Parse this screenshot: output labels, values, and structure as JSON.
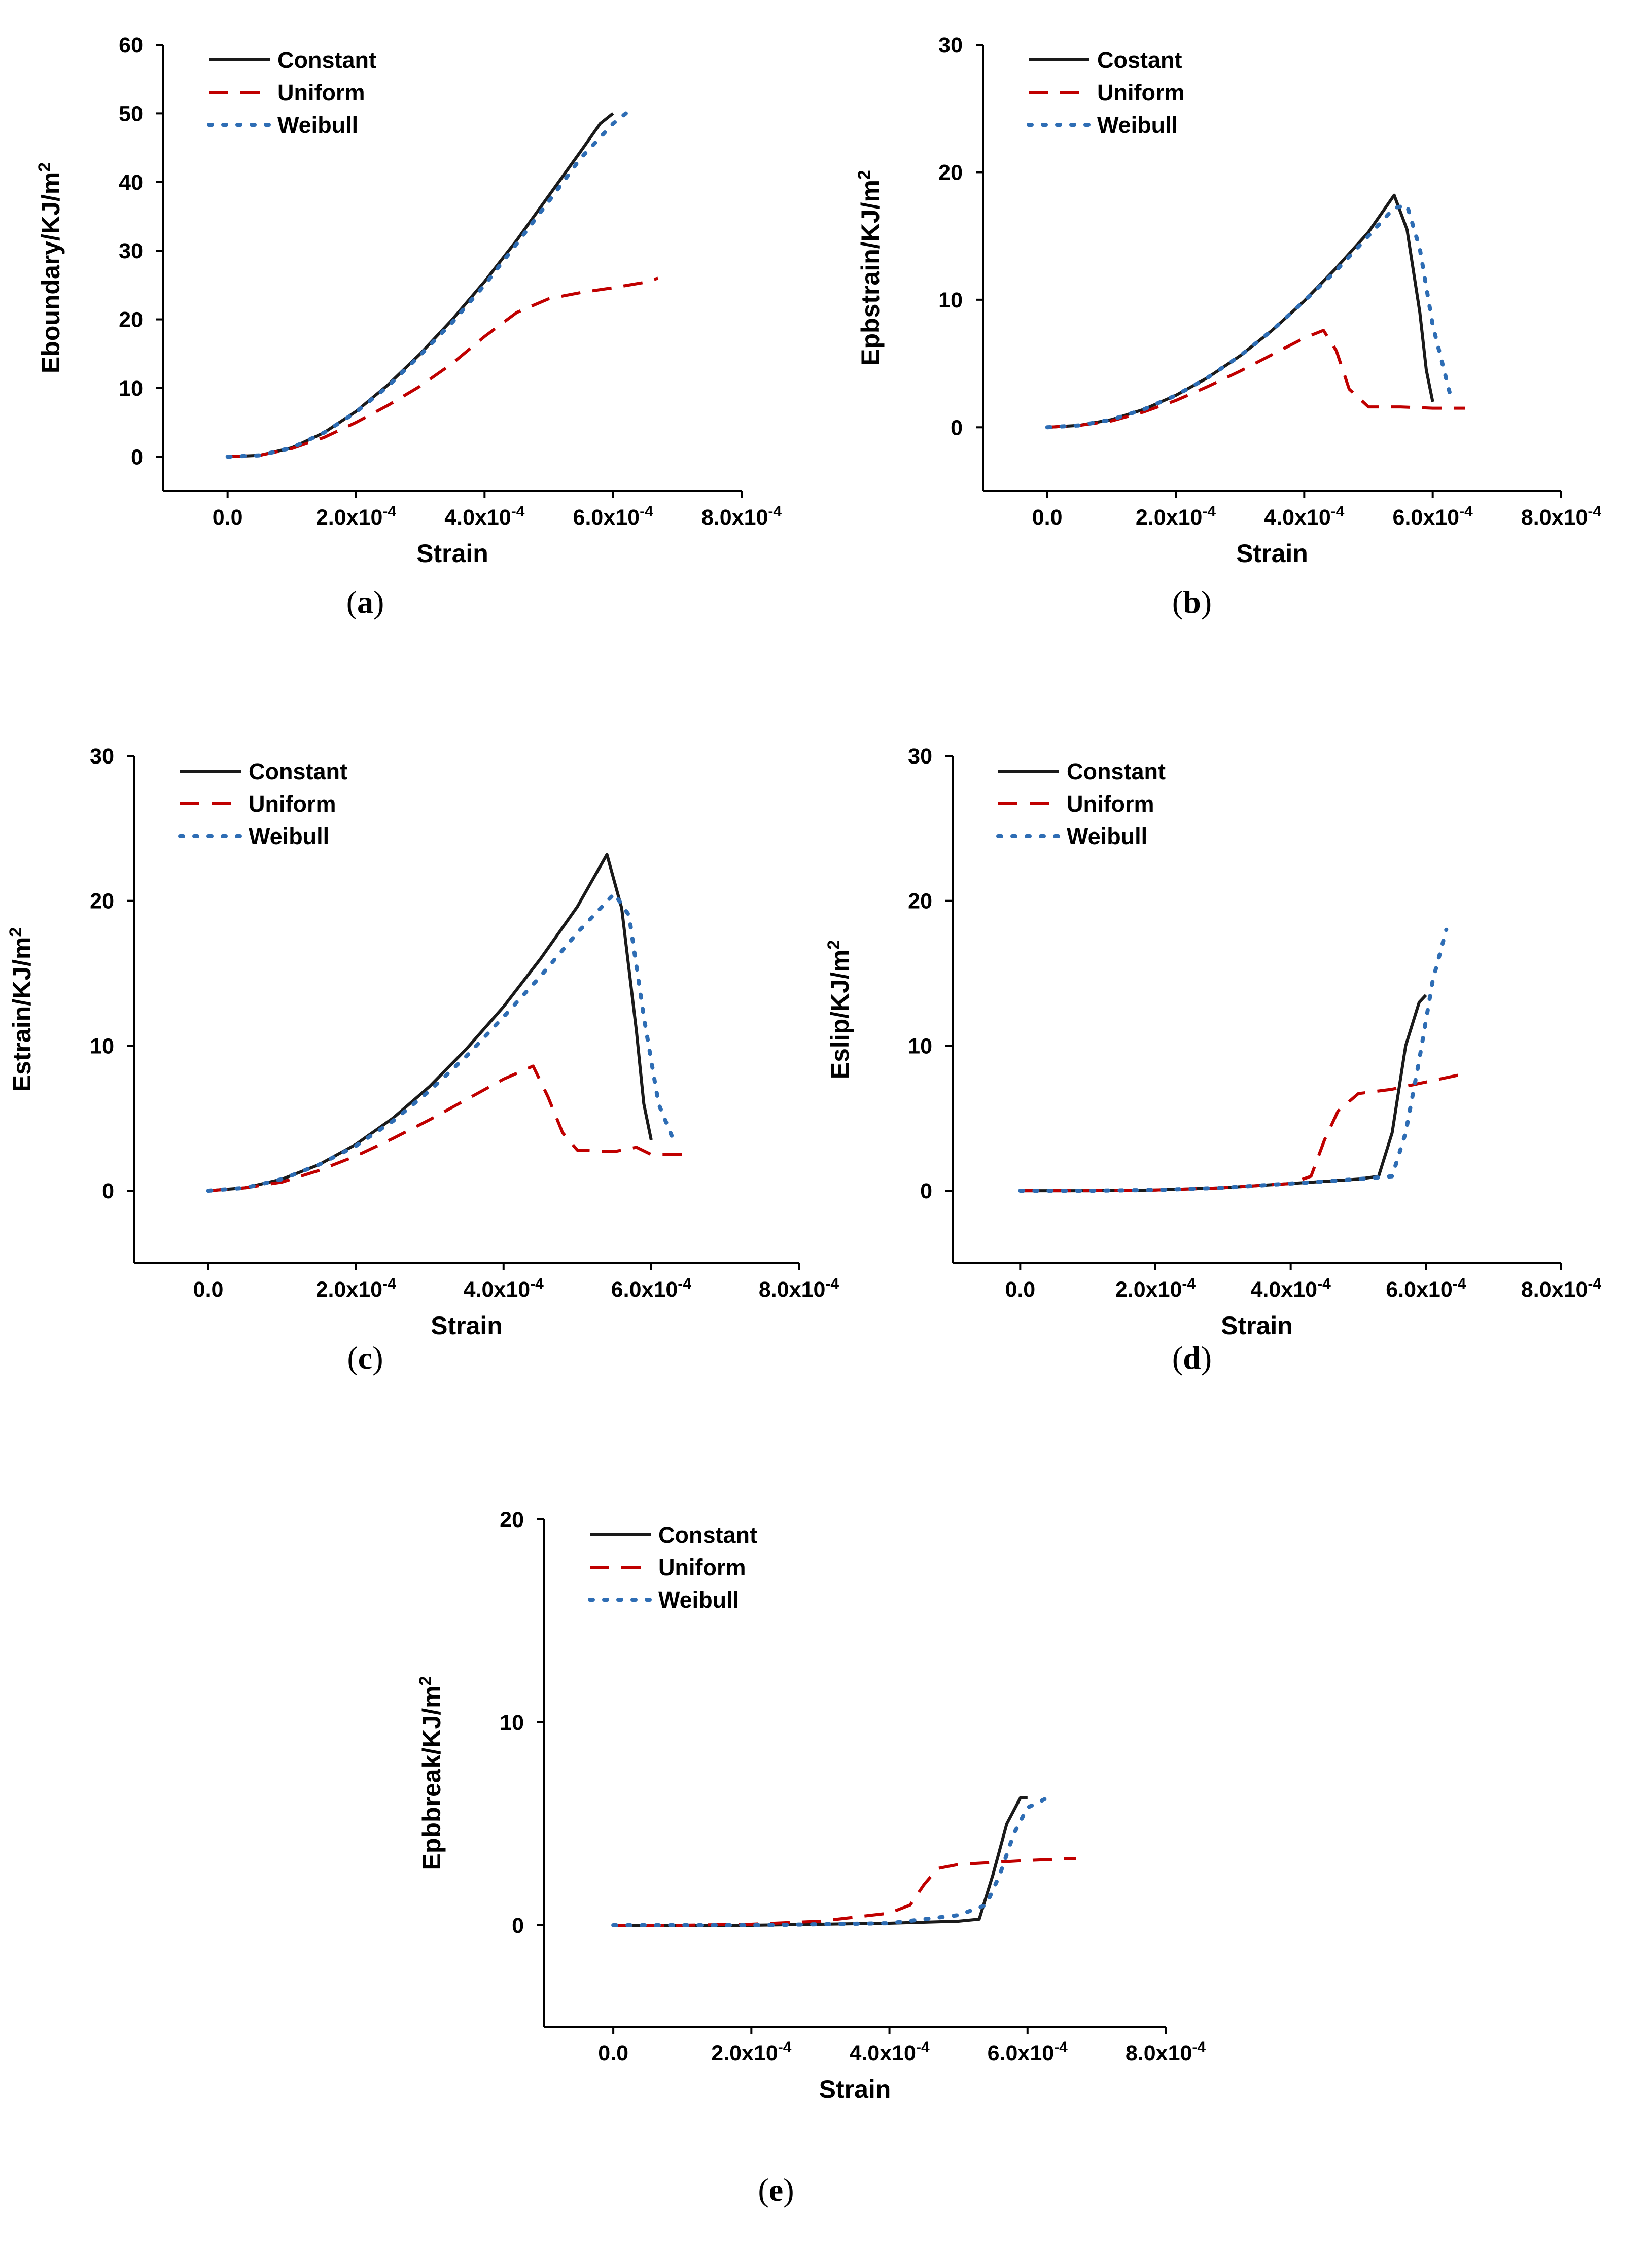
{
  "colors": {
    "constant": "#1a1a1a",
    "uniform": "#c00000",
    "weibull": "#2e6db4"
  },
  "legend": [
    "Constant",
    "Uniform",
    "Weibull"
  ],
  "chart_data": [
    {
      "type": "line",
      "panel": "a",
      "caption": "a",
      "xlabel": "Strain",
      "ylabel": "Eboundary/KJ/m²",
      "xlim": [
        -0.0001,
        0.0008
      ],
      "ylim": [
        -5,
        60
      ],
      "xticks": [
        0.0,
        0.0002,
        0.0004,
        0.0006,
        0.0008
      ],
      "xtick_labels": [
        "0.0",
        "2.0x10⁻⁴",
        "4.0x10⁻⁴",
        "6.0x10⁻⁴",
        "8.0x10⁻⁴"
      ],
      "yticks": [
        0,
        10,
        20,
        30,
        40,
        50,
        60
      ],
      "ytick_labels": [
        "0",
        "10",
        "20",
        "30",
        "40",
        "50",
        "60"
      ],
      "legend_labels": [
        "Constant",
        "Uniform",
        "Weibull"
      ],
      "series": [
        {
          "name": "Constant",
          "style": "solid",
          "x": [
            0,
            5e-05,
            0.0001,
            0.00015,
            0.0002,
            0.00025,
            0.0003,
            0.00035,
            0.0004,
            0.00045,
            0.0005,
            0.00055,
            0.00058,
            0.0006
          ],
          "y": [
            0,
            0.2,
            1.3,
            3.5,
            6.6,
            10.5,
            15,
            20,
            25.5,
            31.5,
            38,
            44.5,
            48.5,
            50
          ]
        },
        {
          "name": "Uniform",
          "style": "dashed",
          "x": [
            0,
            5e-05,
            0.0001,
            0.00015,
            0.0002,
            0.00025,
            0.0003,
            0.00035,
            0.0004,
            0.00045,
            0.0005,
            0.00055,
            0.0006,
            0.00065,
            0.00067
          ],
          "y": [
            0,
            0.2,
            1.2,
            2.8,
            5,
            7.5,
            10.3,
            13.6,
            17.5,
            21,
            23,
            23.9,
            24.6,
            25.4,
            26
          ]
        },
        {
          "name": "Weibull",
          "style": "dotted",
          "x": [
            0,
            5e-05,
            0.0001,
            0.00015,
            0.0002,
            0.00025,
            0.0003,
            0.00035,
            0.0004,
            0.00045,
            0.0005,
            0.00055,
            0.0006,
            0.00062
          ],
          "y": [
            0,
            0.2,
            1.3,
            3.5,
            6.5,
            10.3,
            14.8,
            19.6,
            25,
            31,
            37.2,
            43.5,
            48.5,
            50
          ]
        }
      ]
    },
    {
      "type": "line",
      "panel": "b",
      "caption": "b",
      "xlabel": "Strain",
      "ylabel": "Epbstrain/KJ/m²",
      "xlim": [
        -0.0001,
        0.0008
      ],
      "ylim": [
        -5,
        30
      ],
      "xticks": [
        0.0,
        0.0002,
        0.0004,
        0.0006,
        0.0008
      ],
      "xtick_labels": [
        "0.0",
        "2.0x10⁻⁴",
        "4.0x10⁻⁴",
        "6.0x10⁻⁴",
        "8.0x10⁻⁴"
      ],
      "yticks": [
        0,
        10,
        20,
        30
      ],
      "ytick_labels": [
        "0",
        "10",
        "20",
        "30"
      ],
      "legend_labels": [
        "Costant",
        "Uniform",
        "Weibull"
      ],
      "series": [
        {
          "name": "Constant",
          "style": "solid",
          "x": [
            0,
            5e-05,
            0.0001,
            0.00015,
            0.0002,
            0.00025,
            0.0003,
            0.00035,
            0.0004,
            0.00045,
            0.0005,
            0.00054,
            0.00056,
            0.00058,
            0.00059,
            0.0006
          ],
          "y": [
            0,
            0.15,
            0.6,
            1.4,
            2.5,
            3.9,
            5.6,
            7.6,
            9.9,
            12.5,
            15.3,
            18.2,
            15.5,
            9,
            4.5,
            2
          ]
        },
        {
          "name": "Uniform",
          "style": "dashed",
          "x": [
            0,
            5e-05,
            0.0001,
            0.00015,
            0.0002,
            0.00025,
            0.0003,
            0.00035,
            0.0004,
            0.00043,
            0.00045,
            0.00047,
            0.0005,
            0.00055,
            0.0006,
            0.00065
          ],
          "y": [
            0,
            0.15,
            0.5,
            1.2,
            2.1,
            3.2,
            4.4,
            5.7,
            7,
            7.6,
            6,
            3,
            1.6,
            1.6,
            1.5,
            1.5
          ]
        },
        {
          "name": "Weibull",
          "style": "dotted",
          "x": [
            0,
            5e-05,
            0.0001,
            0.00015,
            0.0002,
            0.00025,
            0.0003,
            0.00035,
            0.0004,
            0.00045,
            0.0005,
            0.00054,
            0.00056,
            0.00058,
            0.0006,
            0.00063
          ],
          "y": [
            0,
            0.15,
            0.6,
            1.4,
            2.5,
            3.9,
            5.6,
            7.6,
            9.9,
            12.3,
            15,
            17.2,
            17.4,
            14,
            8,
            2
          ]
        }
      ]
    },
    {
      "type": "line",
      "panel": "c",
      "caption": "c",
      "xlabel": "Strain",
      "ylabel": "Estrain/KJ/m²",
      "xlim": [
        -0.0001,
        0.0008
      ],
      "ylim": [
        -5,
        30
      ],
      "xticks": [
        0.0,
        0.0002,
        0.0004,
        0.0006,
        0.0008
      ],
      "xtick_labels": [
        "0.0",
        "2.0x10⁻⁴",
        "4.0x10⁻⁴",
        "6.0x10⁻⁴",
        "8.0x10⁻⁴"
      ],
      "yticks": [
        0,
        10,
        20,
        30
      ],
      "ytick_labels": [
        "0",
        "10",
        "20",
        "30"
      ],
      "legend_labels": [
        "Constant",
        "Uniform",
        "Weibull"
      ],
      "series": [
        {
          "name": "Constant",
          "style": "solid",
          "x": [
            0,
            5e-05,
            0.0001,
            0.00015,
            0.0002,
            0.00025,
            0.0003,
            0.00035,
            0.0004,
            0.00045,
            0.0005,
            0.00054,
            0.00056,
            0.00058,
            0.00059,
            0.0006
          ],
          "y": [
            0,
            0.2,
            0.8,
            1.8,
            3.2,
            5,
            7.2,
            9.8,
            12.7,
            16,
            19.6,
            23.2,
            19.5,
            11,
            6,
            3.5
          ]
        },
        {
          "name": "Uniform",
          "style": "dashed",
          "x": [
            0,
            5e-05,
            0.0001,
            0.00015,
            0.0002,
            0.00025,
            0.0003,
            0.00035,
            0.0004,
            0.00044,
            0.00046,
            0.00048,
            0.0005,
            0.00055,
            0.00058,
            0.0006,
            0.00065
          ],
          "y": [
            0,
            0.2,
            0.6,
            1.4,
            2.4,
            3.6,
            4.9,
            6.3,
            7.7,
            8.6,
            6.5,
            4,
            2.8,
            2.7,
            3,
            2.5,
            2.5
          ]
        },
        {
          "name": "Weibull",
          "style": "dotted",
          "x": [
            0,
            5e-05,
            0.0001,
            0.00015,
            0.0002,
            0.00025,
            0.0003,
            0.00035,
            0.0004,
            0.00045,
            0.0005,
            0.00055,
            0.00057,
            0.00059,
            0.00061,
            0.00063
          ],
          "y": [
            0,
            0.2,
            0.8,
            1.8,
            3.1,
            4.8,
            6.9,
            9.3,
            12,
            14.8,
            17.8,
            20.5,
            19,
            12,
            6,
            3.5
          ]
        }
      ]
    },
    {
      "type": "line",
      "panel": "d",
      "caption": "d",
      "xlabel": "Strain",
      "ylabel": "Eslip/KJ/m²",
      "xlim": [
        -0.0001,
        0.0008
      ],
      "ylim": [
        -5,
        30
      ],
      "xticks": [
        0.0,
        0.0002,
        0.0004,
        0.0006,
        0.0008
      ],
      "xtick_labels": [
        "0.0",
        "2.0x10⁻⁴",
        "4.0x10⁻⁴",
        "6.0x10⁻⁴",
        "8.0x10⁻⁴"
      ],
      "yticks": [
        0,
        10,
        20,
        30
      ],
      "ytick_labels": [
        "0",
        "10",
        "20",
        "30"
      ],
      "legend_labels": [
        "Constant",
        "Uniform",
        "Weibull"
      ],
      "series": [
        {
          "name": "Constant",
          "style": "solid",
          "x": [
            0,
            0.0001,
            0.0002,
            0.0003,
            0.0004,
            0.0005,
            0.00053,
            0.00055,
            0.00057,
            0.00059,
            0.0006
          ],
          "y": [
            0,
            0,
            0.05,
            0.2,
            0.5,
            0.8,
            1,
            4,
            10,
            13,
            13.5
          ]
        },
        {
          "name": "Uniform",
          "style": "dashed",
          "x": [
            0,
            0.0001,
            0.0002,
            0.0003,
            0.0004,
            0.00043,
            0.00045,
            0.00047,
            0.0005,
            0.00055,
            0.0006,
            0.00065
          ],
          "y": [
            0,
            0,
            0.05,
            0.2,
            0.5,
            1,
            3.5,
            5.5,
            6.7,
            7,
            7.5,
            8
          ]
        },
        {
          "name": "Weibull",
          "style": "dotted",
          "x": [
            0,
            0.0001,
            0.0002,
            0.0003,
            0.0004,
            0.0005,
            0.00055,
            0.00057,
            0.00059,
            0.00061,
            0.00063
          ],
          "y": [
            0,
            0,
            0.05,
            0.2,
            0.5,
            0.8,
            1,
            4,
            9,
            14.5,
            18
          ]
        }
      ]
    },
    {
      "type": "line",
      "panel": "e",
      "caption": "e",
      "xlabel": "Strain",
      "ylabel": "Epbbreak/KJ/m²",
      "xlim": [
        -0.0001,
        0.0008
      ],
      "ylim": [
        -5,
        20
      ],
      "xticks": [
        0.0,
        0.0002,
        0.0004,
        0.0006,
        0.0008
      ],
      "xtick_labels": [
        "0.0",
        "2.0x10⁻⁴",
        "4.0x10⁻⁴",
        "6.0x10⁻⁴",
        "8.0x10⁻⁴"
      ],
      "yticks": [
        0,
        10,
        20
      ],
      "ytick_labels": [
        "0",
        "10",
        "20"
      ],
      "legend_labels": [
        "Constant",
        "Uniform",
        "Weibull"
      ],
      "series": [
        {
          "name": "Constant",
          "style": "solid",
          "x": [
            0,
            0.0001,
            0.0002,
            0.0003,
            0.0004,
            0.0005,
            0.00053,
            0.00055,
            0.00057,
            0.00059,
            0.0006
          ],
          "y": [
            0,
            0,
            0,
            0.05,
            0.1,
            0.2,
            0.3,
            2.5,
            5,
            6.3,
            6.3
          ]
        },
        {
          "name": "Uniform",
          "style": "dashed",
          "x": [
            0,
            0.0001,
            0.0002,
            0.0003,
            0.0004,
            0.00043,
            0.00045,
            0.00047,
            0.0005,
            0.00055,
            0.0006,
            0.00067
          ],
          "y": [
            0,
            0,
            0.05,
            0.2,
            0.6,
            1,
            2,
            2.8,
            3,
            3.1,
            3.2,
            3.3
          ]
        },
        {
          "name": "Weibull",
          "style": "dotted",
          "x": [
            0,
            0.0001,
            0.0002,
            0.0003,
            0.0004,
            0.0005,
            0.00054,
            0.00056,
            0.00058,
            0.0006,
            0.00063
          ],
          "y": [
            0,
            0,
            0,
            0.05,
            0.1,
            0.5,
            1,
            2.5,
            4.5,
            5.8,
            6.3
          ]
        }
      ]
    }
  ]
}
